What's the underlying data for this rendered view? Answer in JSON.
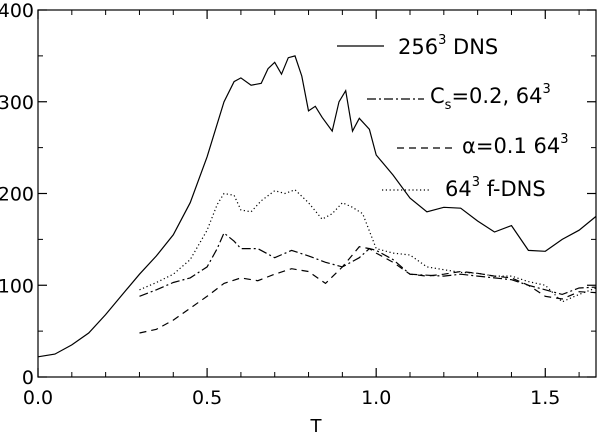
{
  "chart_data": {
    "type": "line",
    "title": "",
    "xlabel": "T",
    "ylabel": "",
    "xlim": [
      0.0,
      1.65
    ],
    "ylim": [
      0,
      400
    ],
    "xticks": [
      "0.0",
      "0.5",
      "1.0",
      "1.5"
    ],
    "yticks": [
      "0",
      "100",
      "200",
      "300",
      "400"
    ],
    "grid": false,
    "legend_position": "top-right",
    "series": [
      {
        "name": "256^3 DNS",
        "legend": {
          "pre": "256",
          "sup": "3",
          "post": " DNS"
        },
        "style": "solid",
        "x": [
          0.0,
          0.05,
          0.1,
          0.15,
          0.2,
          0.25,
          0.3,
          0.35,
          0.4,
          0.45,
          0.5,
          0.55,
          0.58,
          0.6,
          0.63,
          0.66,
          0.68,
          0.7,
          0.72,
          0.74,
          0.76,
          0.78,
          0.8,
          0.82,
          0.84,
          0.87,
          0.89,
          0.91,
          0.93,
          0.95,
          0.98,
          1.0,
          1.05,
          1.1,
          1.15,
          1.2,
          1.25,
          1.3,
          1.35,
          1.4,
          1.45,
          1.5,
          1.55,
          1.6,
          1.65
        ],
        "y": [
          22,
          25,
          35,
          48,
          68,
          90,
          112,
          132,
          155,
          190,
          240,
          300,
          322,
          326,
          318,
          320,
          336,
          343,
          330,
          348,
          350,
          328,
          290,
          295,
          283,
          268,
          300,
          312,
          268,
          282,
          270,
          242,
          220,
          195,
          180,
          185,
          184,
          170,
          158,
          165,
          138,
          137,
          150,
          160,
          175
        ]
      },
      {
        "name": "C_s=0.2, 64^3",
        "legend": {
          "pre": "C",
          "sub": "s",
          "mid": "=0.2, 64",
          "sup": "3"
        },
        "style": "dashdot",
        "x": [
          0.3,
          0.35,
          0.4,
          0.45,
          0.5,
          0.53,
          0.55,
          0.58,
          0.6,
          0.65,
          0.7,
          0.75,
          0.8,
          0.85,
          0.9,
          0.95,
          0.98,
          1.0,
          1.05,
          1.1,
          1.15,
          1.2,
          1.25,
          1.3,
          1.35,
          1.4,
          1.45,
          1.5,
          1.55,
          1.6,
          1.65
        ],
        "y": [
          88,
          95,
          103,
          108,
          120,
          140,
          157,
          148,
          140,
          140,
          130,
          138,
          132,
          125,
          120,
          130,
          140,
          138,
          128,
          112,
          111,
          110,
          112,
          110,
          108,
          106,
          100,
          95,
          90,
          97,
          98
        ]
      },
      {
        "name": "alpha=0.1 64^3",
        "legend": {
          "pre": "α=0.1 64",
          "sup": "3"
        },
        "style": "dashed",
        "x": [
          0.3,
          0.35,
          0.4,
          0.45,
          0.5,
          0.55,
          0.6,
          0.65,
          0.7,
          0.75,
          0.8,
          0.85,
          0.9,
          0.95,
          0.98,
          1.0,
          1.05,
          1.1,
          1.15,
          1.2,
          1.25,
          1.3,
          1.35,
          1.4,
          1.45,
          1.5,
          1.55,
          1.6,
          1.65
        ],
        "y": [
          48,
          52,
          62,
          75,
          88,
          102,
          108,
          105,
          112,
          118,
          115,
          102,
          120,
          142,
          140,
          135,
          125,
          112,
          110,
          112,
          115,
          113,
          110,
          108,
          100,
          88,
          85,
          93,
          92
        ]
      },
      {
        "name": "64^3 f-DNS",
        "legend": {
          "pre": "64",
          "sup": "3",
          "post": " f-DNS"
        },
        "style": "dotted",
        "x": [
          0.3,
          0.35,
          0.4,
          0.45,
          0.5,
          0.53,
          0.55,
          0.58,
          0.6,
          0.63,
          0.66,
          0.7,
          0.73,
          0.76,
          0.8,
          0.84,
          0.87,
          0.9,
          0.93,
          0.96,
          1.0,
          1.05,
          1.1,
          1.15,
          1.2,
          1.25,
          1.3,
          1.35,
          1.4,
          1.45,
          1.5,
          1.55,
          1.6,
          1.65
        ],
        "y": [
          95,
          103,
          112,
          128,
          160,
          188,
          200,
          198,
          182,
          180,
          192,
          203,
          200,
          204,
          190,
          172,
          178,
          190,
          185,
          178,
          140,
          135,
          133,
          120,
          117,
          114,
          113,
          110,
          110,
          104,
          100,
          82,
          90,
          97
        ]
      }
    ]
  }
}
